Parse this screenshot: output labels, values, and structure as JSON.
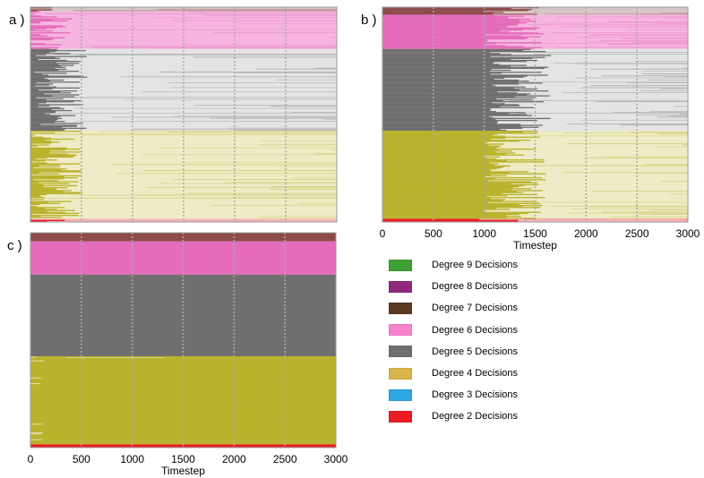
{
  "panel_labels": {
    "a": "a )",
    "b": "b )",
    "c": "c )"
  },
  "colors": {
    "degree9": "#3fa035",
    "degree8": "#8f2a7e",
    "degree7": "#5b3a22",
    "degree7_band": "#8d4a4a",
    "degree6": "#e46cba",
    "degree6_light": "#f5b5df",
    "degree5": "#6f6f6f",
    "degree5_light": "#e4e4e4",
    "degree4": "#b9b22c",
    "degree4_light": "#eeebc6",
    "degree3": "#2ea7e0",
    "degree2": "#ec1c24",
    "grid": "#a9a9a9",
    "frame": "#9a9a9a"
  },
  "legend": {
    "items": [
      {
        "label": "Degree 9 Decisions",
        "color": "#3fa035"
      },
      {
        "label": "Degree 8 Decisions",
        "color": "#8f2a7e"
      },
      {
        "label": "Degree 7 Decisions",
        "color": "#5b3a22"
      },
      {
        "label": "Degree 6 Decisions",
        "color": "#f783cf"
      },
      {
        "label": "Degree 5 Decisions",
        "color": "#6f6f6f"
      },
      {
        "label": "Degree 4 Decisions",
        "color": "#d8b44a"
      },
      {
        "label": "Degree 3 Decisions",
        "color": "#2ea7e0"
      },
      {
        "label": "Degree 2 Decisions",
        "color": "#ec1c24"
      }
    ]
  },
  "chart_data": [
    {
      "panel": "a",
      "type": "heatmap",
      "description_rows": "rows are agents grouped by decision degree; color intensity fades over time",
      "xlim": [
        0,
        3000
      ],
      "xticks": [
        0,
        500,
        1000,
        1500,
        2000,
        2500,
        3000
      ],
      "xlabel": "",
      "show_tick_labels": false,
      "bands": [
        {
          "degree": 7,
          "from": 0.0,
          "to": 0.02,
          "transition": 0
        },
        {
          "degree": 6,
          "from": 0.02,
          "to": 0.195,
          "transition": 150
        },
        {
          "degree": 5,
          "from": 0.195,
          "to": 0.575,
          "transition": 300
        },
        {
          "degree": 4,
          "from": 0.575,
          "to": 0.985,
          "transition": 250
        },
        {
          "degree": 2,
          "from": 0.985,
          "to": 1.0,
          "transition": 200
        }
      ]
    },
    {
      "panel": "b",
      "type": "heatmap",
      "xlim": [
        0,
        3000
      ],
      "xticks": [
        0,
        500,
        1000,
        1500,
        2000,
        2500,
        3000
      ],
      "xlabel": "Timestep",
      "show_tick_labels": true,
      "bands": [
        {
          "degree": 7,
          "from": 0.0,
          "to": 0.035,
          "transition": 1280
        },
        {
          "degree": 6,
          "from": 0.035,
          "to": 0.195,
          "transition": 1280
        },
        {
          "degree": 5,
          "from": 0.195,
          "to": 0.575,
          "transition": 1350
        },
        {
          "degree": 4,
          "from": 0.575,
          "to": 0.985,
          "transition": 1300
        },
        {
          "degree": 2,
          "from": 0.985,
          "to": 1.0,
          "transition": 1250
        }
      ]
    },
    {
      "panel": "c",
      "type": "heatmap",
      "xlim": [
        0,
        3000
      ],
      "xticks": [
        0,
        500,
        1000,
        1500,
        2000,
        2500,
        3000
      ],
      "xlabel": "Timestep",
      "show_tick_labels": true,
      "bands": [
        {
          "degree": 7,
          "from": 0.0,
          "to": 0.04,
          "transition": 99999
        },
        {
          "degree": 6,
          "from": 0.04,
          "to": 0.195,
          "transition": 99999
        },
        {
          "degree": 5,
          "from": 0.195,
          "to": 0.575,
          "transition": 99999
        },
        {
          "degree": 4,
          "from": 0.575,
          "to": 0.985,
          "transition": 99999
        },
        {
          "degree": 2,
          "from": 0.985,
          "to": 1.0,
          "transition": 99999
        }
      ]
    }
  ]
}
